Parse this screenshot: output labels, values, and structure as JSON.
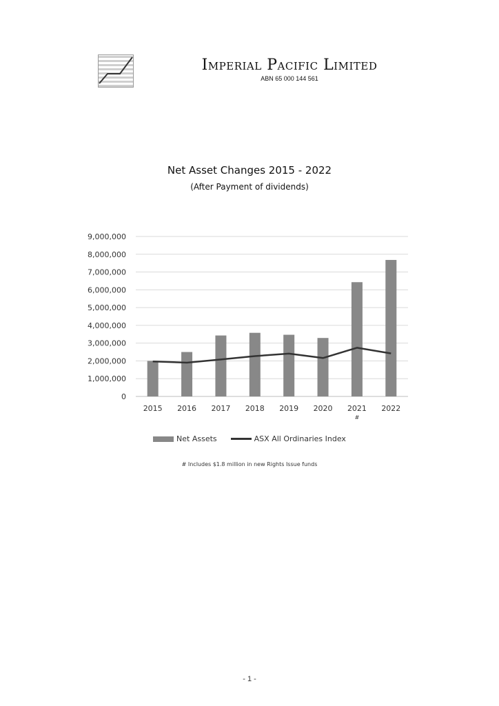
{
  "header": {
    "company_name": "Imperial Pacific Limited",
    "abn": "ABN 65 000 144 561",
    "logo_icon": "rising-line-chart-icon"
  },
  "chart_data": {
    "type": "bar",
    "title": "Net Asset Changes 2015 - 2022",
    "subtitle": "(After Payment of dividends)",
    "categories": [
      "2015",
      "2016",
      "2017",
      "2018",
      "2019",
      "2020",
      "2021",
      "2022"
    ],
    "category_notes": [
      "",
      "",
      "",
      "",
      "",
      "",
      "#",
      ""
    ],
    "series": [
      {
        "name": "Net Assets",
        "type": "bar",
        "color": "#888888",
        "values": [
          2000000,
          2500000,
          3430000,
          3580000,
          3470000,
          3290000,
          6430000,
          7680000
        ]
      },
      {
        "name": "ASX All Ordinaries Index",
        "type": "line",
        "color": "#333333",
        "values": [
          1970000,
          1900000,
          2080000,
          2270000,
          2410000,
          2160000,
          2740000,
          2420000
        ]
      }
    ],
    "yticks": [
      "0",
      "1,000,000",
      "2,000,000",
      "3,000,000",
      "4,000,000",
      "5,000,000",
      "6,000,000",
      "7,000,000",
      "8,000,000",
      "9,000,000"
    ],
    "ylim": [
      0,
      9000000
    ],
    "grid": true,
    "legend_position": "bottom",
    "footnote": "# Includes $1.8 million in new Rights Issue funds"
  },
  "footer": {
    "page_number": "- 1 -"
  }
}
